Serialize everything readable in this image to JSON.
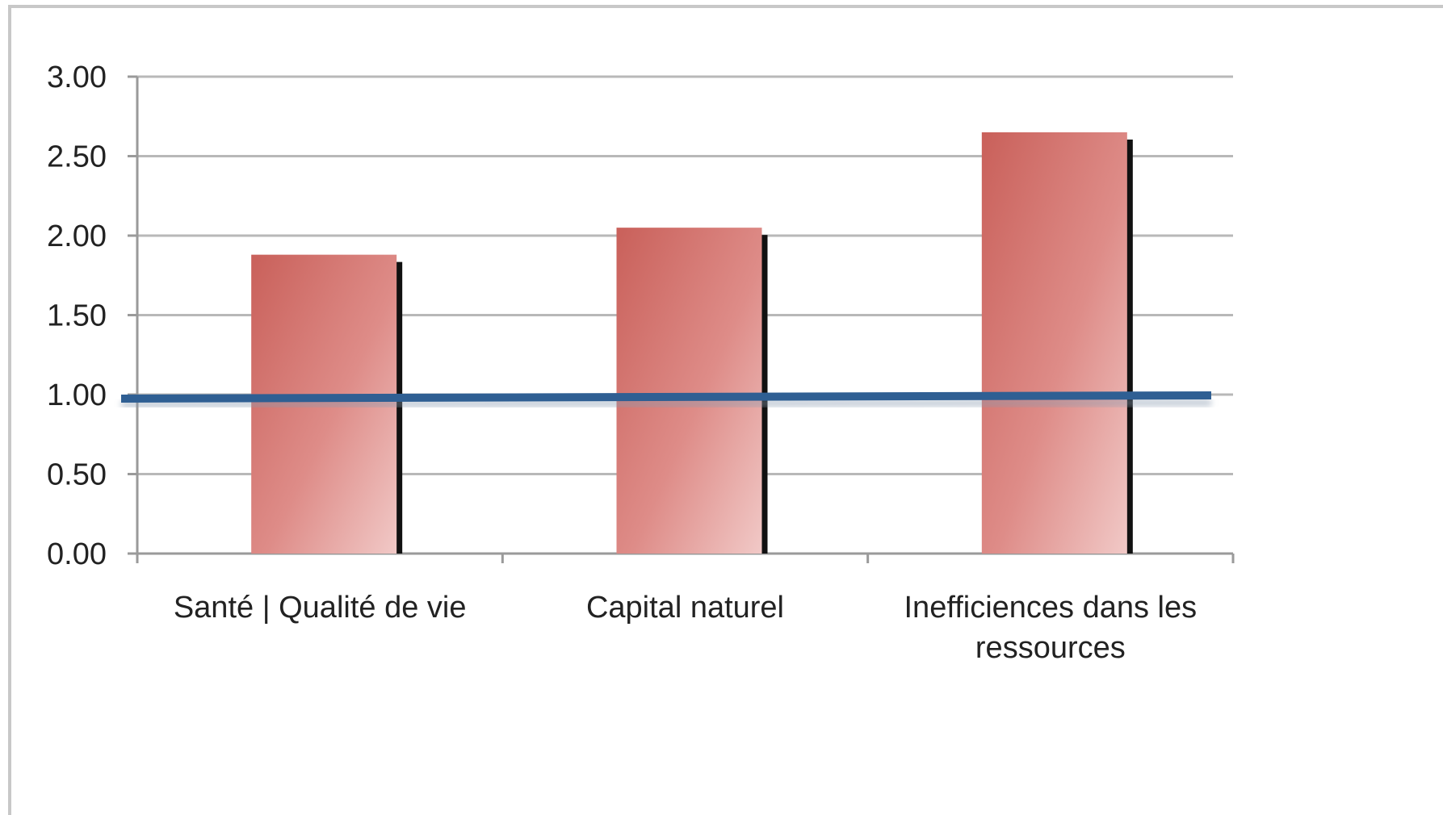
{
  "chart_data": {
    "type": "bar",
    "categories": [
      [
        "Santé | Qualité de vie"
      ],
      [
        "Capital naturel"
      ],
      [
        "Inefficiences dans les",
        "ressources"
      ]
    ],
    "values": [
      1.88,
      2.05,
      2.65
    ],
    "reference_line": {
      "value": 0.99,
      "color": "#2f5f93"
    },
    "ylim": [
      0,
      3
    ],
    "yticks": [
      "0.00",
      "0.50",
      "1.00",
      "1.50",
      "2.00",
      "2.50",
      "3.00"
    ],
    "ytick_values": [
      0,
      0.5,
      1,
      1.5,
      2,
      2.5,
      3
    ],
    "grid": true,
    "legend": "none",
    "title": "",
    "xlabel": "",
    "ylabel": "",
    "colors": {
      "bar_top": "#c9605a",
      "bar_bottom": "#f1c9c7",
      "bar_shadow": "#111111",
      "grid": "#b8b8b8",
      "axis": "#9a9a9a",
      "frame": "#c8c8c8"
    }
  }
}
